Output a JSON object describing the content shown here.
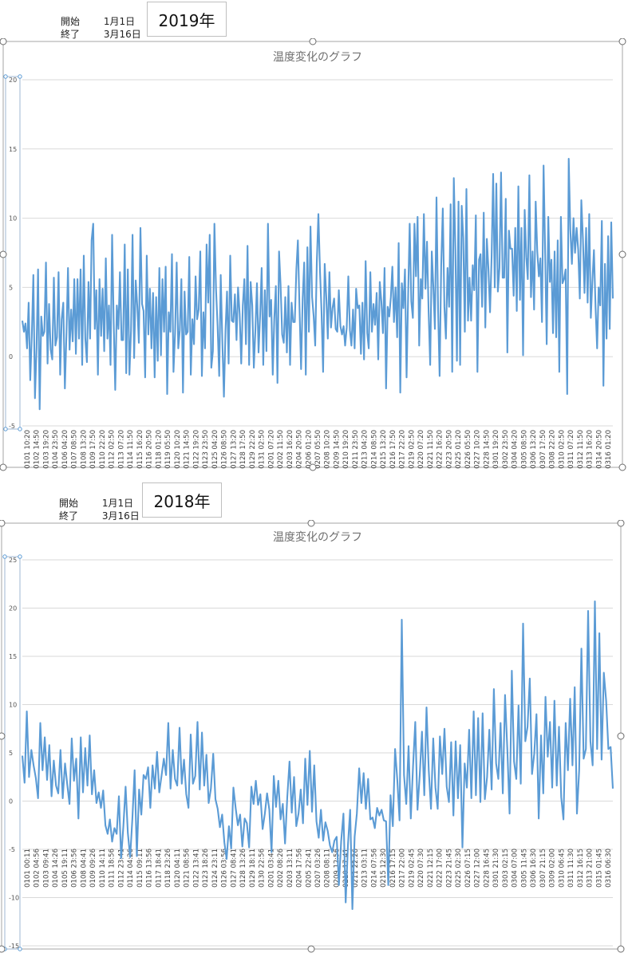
{
  "charts": [
    {
      "start_label": "開始",
      "start_value": "1月1日",
      "end_label": "終了",
      "end_value": "3月16日",
      "year": "2019年"
    },
    {
      "start_label": "開始",
      "start_value": "1月1日",
      "end_label": "終了",
      "end_value": "3月16日",
      "year": "2018年"
    }
  ],
  "colors": {
    "line": "#5b9bd5",
    "grid": "#d9d9d9",
    "handle": "#6b6b6b",
    "axis_handle": "#5b9bd5"
  },
  "chart_data": [
    {
      "type": "line",
      "title": "温度変化のグラフ",
      "xlabel": "",
      "ylabel": "",
      "ylim": [
        -5,
        20
      ],
      "yticks": [
        -5,
        0,
        5,
        10,
        15,
        20
      ],
      "grid": true,
      "legend": "none",
      "x_tick_labels": [
        "0101 10:20",
        "0102 14:50",
        "0103 19:20",
        "0104 23:50",
        "0106 04:20",
        "0107 08:50",
        "0108 13:20",
        "0109 17:50",
        "0110 22:20",
        "0112 02:50",
        "0113 07:20",
        "0114 11:50",
        "0115 16:20",
        "0116 20:50",
        "0118 01:20",
        "0119 05:50",
        "0120 10:20",
        "0121 14:50",
        "0122 19:20",
        "0123 23:50",
        "0125 04:20",
        "0126 08:50",
        "0127 13:20",
        "0128 17:50",
        "0129 22:20",
        "0131 02:50",
        "0201 07:20",
        "0202 11:50",
        "0203 16:20",
        "0204 20:50",
        "0206 01:20",
        "0207 05:50",
        "0208 10:20",
        "0209 14:50",
        "0210 19:20",
        "0211 23:50",
        "0213 04:20",
        "0214 08:50",
        "0215 13:20",
        "0216 17:50",
        "0217 22:20",
        "0219 02:50",
        "0220 07:20",
        "0221 11:50",
        "0222 16:20",
        "0223 20:50",
        "0225 01:20",
        "0226 05:50",
        "0227 10:20",
        "0228 14:50",
        "0301 19:20",
        "0302 23:50",
        "0304 04:20",
        "0305 08:50",
        "0306 13:20",
        "0307 17:50",
        "0308 22:20",
        "0310 02:50",
        "0311 07:20",
        "0312 11:50",
        "0313 16:20",
        "0314 20:50",
        "0316 01:20"
      ],
      "values": [
        2.6,
        1.8,
        2.4,
        0.6,
        3.9,
        -1.7,
        1.4,
        5.9,
        -3,
        0.6,
        6.3,
        -3.8,
        2.9,
        1.5,
        1.8,
        6.8,
        -0.5,
        3.8,
        0.5,
        -0.2,
        5.7,
        0.8,
        1.4,
        6.1,
        -1.3,
        2.7,
        3.9,
        -2.3,
        1.7,
        6.4,
        0.5,
        3.4,
        1.1,
        5.6,
        0.2,
        5.6,
        1.3,
        6.3,
        -0.6,
        7.3,
        1.3,
        -0.4,
        5.4,
        1.3,
        8.4,
        9.6,
        2,
        4.8,
        -1.3,
        5.6,
        1.5,
        4.9,
        0.4,
        7.1,
        1.3,
        3.7,
        -0.6,
        8.8,
        2.4,
        -2.4,
        3.7,
        2,
        6.1,
        1.2,
        1.2,
        8.1,
        -1.2,
        6.3,
        -1.3,
        1.9,
        8.8,
        -0.1,
        5.5,
        3.6,
        1,
        9.3,
        3.8,
        3.3,
        -1.5,
        7.3,
        1.6,
        4.9,
        0.6,
        4.6,
        -1.5,
        4.3,
        -0.3,
        6.4,
        0.1,
        5.6,
        1.8,
        6.5,
        -2.7,
        3.2,
        1.8,
        7.4,
        -1.1,
        1.7,
        6.8,
        0.6,
        1.9,
        5.6,
        -2.6,
        4.7,
        1.6,
        1.8,
        7.2,
        -1.3,
        2.7,
        0.9,
        5.8,
        2.7,
        3.4,
        7.6,
        -1.4,
        3.2,
        0.6,
        8.1,
        3.9,
        8.8,
        -0.8,
        0.4,
        9.6,
        4.9,
        2.2,
        -1.4,
        5.9,
        1.2,
        -2.9,
        1.9,
        4.7,
        -0.5,
        7.3,
        2.6,
        2.5,
        4.5,
        1.2,
        5,
        3.1,
        -0.5,
        3.7,
        5.6,
        0.9,
        8,
        -0.6,
        5.4,
        3.7,
        -0.8,
        2,
        5.3,
        0.3,
        3,
        6.4,
        -0.6,
        4.8,
        0.4,
        9.6,
        2.9,
        4.1,
        -1.3,
        2.7,
        5.1,
        -1.9,
        7.6,
        5.2,
        1.6,
        1,
        4.3,
        0.3,
        5.1,
        -0.6,
        3.9,
        2.5,
        2.5,
        6.3,
        8.4,
        3.6,
        -0.9,
        4.2,
        6.8,
        -1.3,
        7.9,
        1.8,
        9.4,
        4.3,
        2.9,
        0.8,
        6.8,
        10.3,
        6.2,
        3.3,
        -1.1,
        6.7,
        4.3,
        1.3,
        6.1,
        2.1,
        3.5,
        4.2,
        2,
        1.8,
        4.8,
        2.2,
        1.6,
        2.2,
        0.8,
        2.1,
        5.8,
        1.9,
        0.8,
        3.4,
        0.6,
        4.9,
        3.5,
        3.7,
        0.2,
        3.9,
        -0.2,
        6.9,
        1.7,
        0.6,
        6.1,
        1.8,
        3.8,
        2.3,
        4.6,
        -0.2,
        5.4,
        4,
        1.7,
        6.4,
        -2.3,
        3.6,
        2.9,
        4.3,
        6.5,
        2.5,
        5,
        1.4,
        8.2,
        -2.6,
        5.3,
        3.5,
        6.3,
        -1.5,
        4.5,
        9.6,
        4,
        2.8,
        9.6,
        5.8,
        10.1,
        0.8,
        5.6,
        4.2,
        10.3,
        4.9,
        8.3,
        3.3,
        -0.6,
        7.6,
        5.1,
        2,
        11.5,
        3.4,
        -1.4,
        6.6,
        10.7,
        3.6,
        1.3,
        6.4,
        3.6,
        11,
        -1.1,
        12.9,
        7.7,
        -0.3,
        11.2,
        -0.6,
        10.9,
        8.6,
        1.8,
        12.1,
        2.6,
        5.7,
        2.6,
        6.6,
        4.8,
        10.2,
        -1.1,
        7,
        7.4,
        3.6,
        10.4,
        2.1,
        8.5,
        6.3,
        3.2,
        7.3,
        13.2,
        5,
        12.5,
        4.7,
        6.4,
        13.3,
        5.7,
        5.7,
        11.4,
        0.3,
        9.1,
        7.8,
        7.8,
        4.4,
        9.3,
        3.3,
        12.3,
        4.1,
        9.3,
        0.1,
        10.6,
        7.2,
        5.6,
        13.1,
        4.3,
        7.6,
        3.4,
        11.2,
        7.6,
        5.8,
        7.1,
        2.5,
        13.8,
        7.7,
        0.9,
        10.1,
        5.4,
        7,
        1.7,
        7.6,
        1.4,
        8.4,
        -1.1,
        10.1,
        5.3,
        5.6,
        6.3,
        -2.7,
        14.3,
        9.2,
        6.7,
        10,
        7.5,
        9.3,
        7.7,
        4.2,
        11.3,
        8.5,
        4.6,
        9.3,
        3.9,
        10.3,
        2.8,
        5.4,
        7.7,
        3.6,
        0.6,
        5,
        3.7,
        9.8,
        -2.1,
        6.7,
        1.3,
        8.7,
        2,
        9.7,
        4.2
      ]
    },
    {
      "type": "line",
      "title": "温度変化のグラフ",
      "xlabel": "",
      "ylabel": "",
      "ylim": [
        -15,
        25
      ],
      "yticks": [
        -15,
        -10,
        -5,
        0,
        5,
        10,
        15,
        20,
        25
      ],
      "grid": true,
      "legend": "none",
      "x_tick_labels": [
        "0101 00:11",
        "0102 04:56",
        "0103 09:41",
        "0104 14:26",
        "0105 19:11",
        "0106 23:56",
        "0108 04:41",
        "0109 09:26",
        "0110 14:11",
        "0111 18:56",
        "0112 23:41",
        "0114 04:26",
        "0115 09:11",
        "0116 13:56",
        "0117 18:41",
        "0118 23:26",
        "0120 04:11",
        "0121 08:56",
        "0122 13:41",
        "0123 18:26",
        "0124 23:11",
        "0126 03:56",
        "0127 08:41",
        "0128 13:26",
        "0129 18:11",
        "0130 22:56",
        "0201 03:41",
        "0202 08:26",
        "0203 13:11",
        "0204 17:56",
        "0205 22:41",
        "0207 03:26",
        "0208 08:11",
        "0209 12:56",
        "0210 17:41",
        "0211 22:26",
        "0213 03:11",
        "0214 07:56",
        "0215 12:30",
        "0216 17:15",
        "0217 22:00",
        "0219 02:45",
        "0220 07:30",
        "0221 12:15",
        "0222 17:00",
        "0223 21:45",
        "0225 02:30",
        "0226 07:15",
        "0227 12:00",
        "0228 16:45",
        "0301 21:30",
        "0303 02:15",
        "0304 07:00",
        "0305 11:45",
        "0306 16:30",
        "0307 21:15",
        "0309 02:00",
        "0310 06:45",
        "0311 11:30",
        "0312 16:15",
        "0313 21:00",
        "0315 01:45",
        "0316 06:30"
      ],
      "values": [
        4.7,
        1.9,
        9.3,
        2.5,
        5.3,
        3.7,
        2.4,
        0.3,
        8.1,
        3.2,
        6.6,
        2.2,
        5.8,
        0.5,
        4.2,
        1.6,
        0.8,
        5.3,
        0.3,
        3.9,
        1.7,
        -0.3,
        6.5,
        2.1,
        4.4,
        -1.8,
        6.6,
        0.9,
        5.5,
        1.6,
        6.8,
        0.7,
        3.2,
        -0.2,
        0.9,
        -0.7,
        1.1,
        -2.5,
        -3.4,
        -1.9,
        -4.2,
        -2.8,
        -3.4,
        0.5,
        -5.9,
        -2.6,
        1.5,
        -3.3,
        -5.8,
        -1.8,
        3.2,
        -5.7,
        1.2,
        -1.4,
        2.7,
        2.3,
        3.5,
        -0.7,
        3.7,
        1.3,
        5.1,
        0.9,
        2.6,
        4.4,
        2.7,
        8.1,
        1.3,
        5.3,
        2.3,
        1.6,
        7.6,
        1.8,
        4.3,
        0.7,
        -0.7,
        6.9,
        1.8,
        2.6,
        8.2,
        1.2,
        7.1,
        1.6,
        4.8,
        -0.2,
        1.3,
        4.9,
        0.2,
        -0.8,
        -2.7,
        -1.4,
        -4.3,
        -6,
        -2.6,
        -4.9,
        1.4,
        -0.7,
        -2.5,
        -1.4,
        -4.7,
        -1.8,
        -2.3,
        -4.8,
        1.5,
        -0.3,
        2.1,
        -0.4,
        0.7,
        -2.9,
        -1.3,
        0.8,
        -0.9,
        -5.3,
        2.6,
        -0.6,
        2.1,
        -1.9,
        -0.3,
        -4.4,
        0.4,
        4.1,
        -1.2,
        2.5,
        -2.6,
        -1.3,
        1.2,
        -2.3,
        4.4,
        -0.4,
        5.2,
        -1.1,
        3.7,
        -2.1,
        -3.8,
        -0.9,
        -4.1,
        -2.2,
        -3.1,
        -4.6,
        -5.3,
        -4.1,
        -3.7,
        -8.7,
        -4.2,
        -1.3,
        -10.5,
        -4.6,
        -0.9,
        -11.2,
        -3.7,
        -1.3,
        3.4,
        -0.2,
        2.9,
        -0.8,
        2.3,
        -1.9,
        -1.7,
        -2.8,
        -0.7,
        -1.5,
        -0.9,
        -2,
        -2.1,
        -8.7,
        0.6,
        -2.6,
        5.4,
        2.2,
        -2,
        18.8,
        2.7,
        -0.3,
        5.7,
        -1.8,
        3.6,
        8.2,
        -0.9,
        2.7,
        7.2,
        0.6,
        9.7,
        3.2,
        -0.8,
        6.5,
        1.4,
        -0.8,
        6.7,
        2.8,
        7.5,
        1.5,
        -0.1,
        6.1,
        -1.5,
        6.2,
        0.3,
        5.8,
        -4.8,
        3.9,
        1.4,
        7.4,
        0.3,
        9.3,
        0.6,
        8.6,
        -0.1,
        9.1,
        0.2,
        2.5,
        7.4,
        1.2,
        11.6,
        3.9,
        2.3,
        8.1,
        0.8,
        11,
        5.3,
        -1.3,
        13.5,
        4.1,
        2.3,
        9.9,
        1.8,
        18.4,
        6.2,
        7.7,
        12.7,
        2.8,
        4.9,
        9,
        -1.8,
        6.8,
        0.8,
        10.8,
        4.6,
        8.2,
        1.4,
        10.4,
        1.6,
        7.7,
        0.4,
        -1.9,
        8.1,
        3.2,
        10.6,
        3.7,
        11.8,
        -1.3,
        3.2,
        15.8,
        4.4,
        5.4,
        19.7,
        6.2,
        3.7,
        20.7,
        5.4,
        17.4,
        4.3,
        13.3,
        10.4,
        5.4,
        5.6,
        1.3
      ]
    }
  ]
}
